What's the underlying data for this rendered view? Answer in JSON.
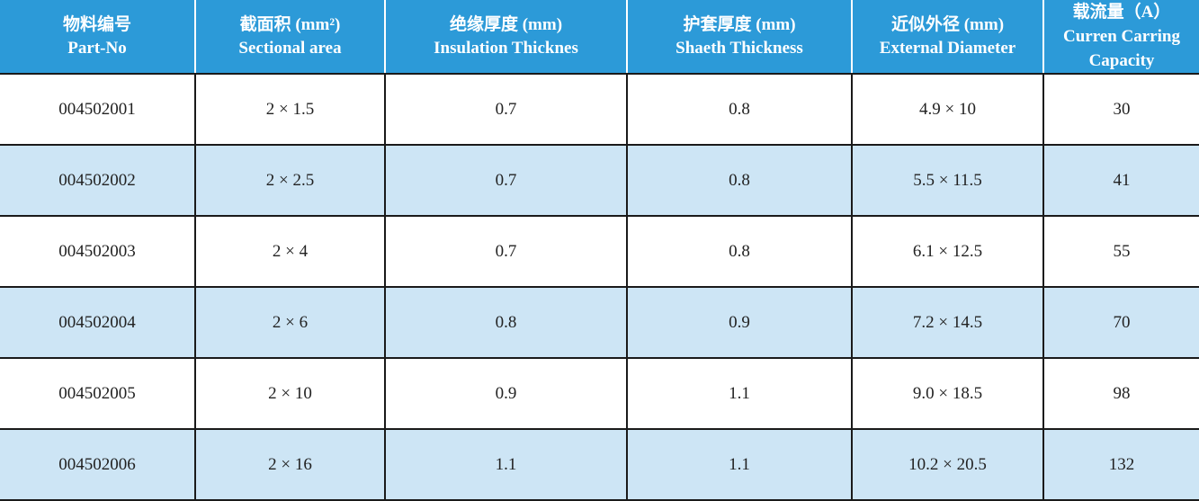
{
  "table": {
    "headers": [
      {
        "zh": "物料编号",
        "en": "Part-No"
      },
      {
        "zh": "截面积 (mm²)",
        "en": "Sectional area"
      },
      {
        "zh": "绝缘厚度 (mm)",
        "en": "Insulation Thicknes"
      },
      {
        "zh": "护套厚度 (mm)",
        "en": "Shaeth Thickness"
      },
      {
        "zh": "近似外径 (mm)",
        "en": "External Diameter"
      },
      {
        "zh": "载流量（A）",
        "en": "Curren Carring",
        "en2": "Capacity"
      }
    ],
    "rows": [
      {
        "part_no": "004502001",
        "area": "2 × 1.5",
        "insulation": "0.7",
        "sheath": "0.8",
        "diameter": "4.9 × 10",
        "capacity": "30"
      },
      {
        "part_no": "004502002",
        "area": "2 × 2.5",
        "insulation": "0.7",
        "sheath": "0.8",
        "diameter": "5.5 × 11.5",
        "capacity": "41"
      },
      {
        "part_no": "004502003",
        "area": "2 × 4",
        "insulation": "0.7",
        "sheath": "0.8",
        "diameter": "6.1 × 12.5",
        "capacity": "55"
      },
      {
        "part_no": "004502004",
        "area": "2 × 6",
        "insulation": "0.8",
        "sheath": "0.9",
        "diameter": "7.2 × 14.5",
        "capacity": "70"
      },
      {
        "part_no": "004502005",
        "area": "2 × 10",
        "insulation": "0.9",
        "sheath": "1.1",
        "diameter": "9.0 × 18.5",
        "capacity": "98"
      },
      {
        "part_no": "004502006",
        "area": "2 × 16",
        "insulation": "1.1",
        "sheath": "1.1",
        "diameter": "10.2 × 20.5",
        "capacity": "132"
      }
    ],
    "colors": {
      "header_background": "#2c9ad8",
      "header_text": "#ffffff",
      "row_alt_background": "#cde5f5",
      "row_background": "#ffffff",
      "grid_line": "#1a1a1a"
    }
  }
}
